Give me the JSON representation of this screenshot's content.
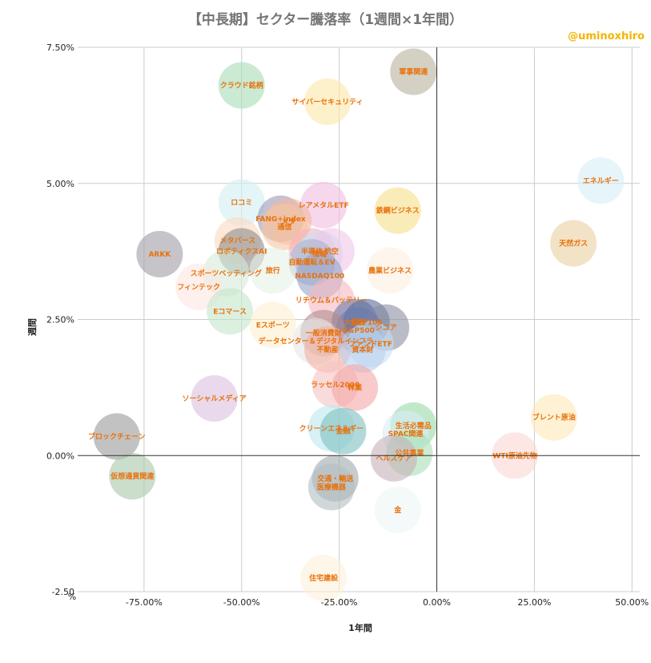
{
  "header": {
    "title": "【中長期】セクター騰落率（1週間×1年間）",
    "credit": "@uminoxhiro"
  },
  "chart_data": {
    "type": "bubble",
    "title": "【中長期】セクター騰落率（1週間×1年間）",
    "xlabel": "1年間",
    "ylabel": "週間",
    "xlim": [
      -92,
      52
    ],
    "ylim": [
      -2.5,
      7.5
    ],
    "x_ticks": [
      "-75.00%",
      "-50.00%",
      "-25.00%",
      "0.00%",
      "25.00%",
      "50.00%"
    ],
    "x_tick_values": [
      -75,
      -50,
      -25,
      0,
      25,
      50
    ],
    "y_ticks": [
      "7.50%",
      "5.00%",
      "2.50%",
      "0.00%",
      "-2.50"
    ],
    "y_tick_values": [
      7.5,
      5,
      2.5,
      0,
      -2.5
    ],
    "y_unit_label": "%",
    "grid": true,
    "points": [
      {
        "label": "軍事関連",
        "x": -6,
        "y": 7.05,
        "color": "#b7b29d"
      },
      {
        "label": "クラウド銘柄",
        "x": -50,
        "y": 6.8,
        "color": "#a8dcb5"
      },
      {
        "label": "サイバーセキュリティ",
        "x": -28,
        "y": 6.5,
        "color": "#fce8a8"
      },
      {
        "label": "エネルギー",
        "x": 42,
        "y": 5.05,
        "color": "#d5eef7"
      },
      {
        "label": "ロコミ",
        "x": -50,
        "y": 4.65,
        "color": "#d2eff2"
      },
      {
        "label": "レアメタルETF",
        "x": -29,
        "y": 4.6,
        "color": "#f1bde0"
      },
      {
        "label": "鉄鋼ビジネス",
        "x": -10,
        "y": 4.5,
        "color": "#f7e08a"
      },
      {
        "label": "FANG+index",
        "x": -40,
        "y": 4.35,
        "color": "#9a9ab5"
      },
      {
        "label": "メタ",
        "x": -38,
        "y": 4.3,
        "color": "#f5b8a0"
      },
      {
        "label": "通信",
        "x": -39,
        "y": 4.2,
        "color": "#f7c7a0"
      },
      {
        "label": "天然ガス",
        "x": 35,
        "y": 3.9,
        "color": "#e9cfa0"
      },
      {
        "label": "メタバース",
        "x": -51,
        "y": 3.95,
        "color": "#fbd9c0"
      },
      {
        "label": "ロボティクスAI",
        "x": -50,
        "y": 3.75,
        "color": "#8c8c8c"
      },
      {
        "label": "ARKK",
        "x": -71,
        "y": 3.7,
        "color": "#a09ca5"
      },
      {
        "label": "半導体",
        "x": -32,
        "y": 3.75,
        "color": "#f7b0c0"
      },
      {
        "label": "情報",
        "x": -30,
        "y": 3.7,
        "color": "#c0e4f0"
      },
      {
        "label": "航空",
        "x": -27,
        "y": 3.75,
        "color": "#f1c6ea"
      },
      {
        "label": "自動運転＆EV",
        "x": -32,
        "y": 3.55,
        "color": "#a6b2d2"
      },
      {
        "label": "旅行",
        "x": -42,
        "y": 3.4,
        "color": "#e6f0e6"
      },
      {
        "label": "農業ビジネス",
        "x": -12,
        "y": 3.4,
        "color": "#fdefe0"
      },
      {
        "label": "NASDAQ100",
        "x": -30,
        "y": 3.3,
        "color": "#9aa5c8"
      },
      {
        "label": "スポーツベッティング",
        "x": -54,
        "y": 3.35,
        "color": "#d6ebd9"
      },
      {
        "label": "フィンテック",
        "x": -61,
        "y": 3.1,
        "color": "#fde6e0"
      },
      {
        "label": "リチウム＆バッテリー",
        "x": -27,
        "y": 2.85,
        "color": "#f5b8c0"
      },
      {
        "label": "Eコマース",
        "x": -53,
        "y": 2.65,
        "color": "#c4e6cc"
      },
      {
        "label": "大型株",
        "x": -21,
        "y": 2.45,
        "color": "#6a7aa5"
      },
      {
        "label": "S&P100",
        "x": -18,
        "y": 2.45,
        "color": "#5a6a98"
      },
      {
        "label": "Eスポーツ",
        "x": -42,
        "y": 2.4,
        "color": "#fdf0d0"
      },
      {
        "label": "シニア",
        "x": -13,
        "y": 2.35,
        "color": "#8a8fa0"
      },
      {
        "label": "S&P500",
        "x": -20,
        "y": 2.3,
        "color": "#6b7ab0"
      },
      {
        "label": "一般消費財",
        "x": -29,
        "y": 2.25,
        "color": "#b08a8a"
      },
      {
        "label": "データセンター＆デジタルインフラ",
        "x": -31,
        "y": 2.1,
        "color": "#e6e6e6"
      },
      {
        "label": "ファンドETF",
        "x": -17,
        "y": 2.05,
        "color": "#c8e0f4"
      },
      {
        "label": "不動産",
        "x": -28,
        "y": 1.95,
        "color": "#f3b0a0"
      },
      {
        "label": "資本財",
        "x": -19,
        "y": 1.95,
        "color": "#b8d0ef"
      },
      {
        "label": "ラッセル2000",
        "x": -26,
        "y": 1.3,
        "color": "#f7c3c3"
      },
      {
        "label": "林業",
        "x": -21,
        "y": 1.25,
        "color": "#f4a6a6"
      },
      {
        "label": "ソーシャルメディア",
        "x": -57,
        "y": 1.05,
        "color": "#dcc0df"
      },
      {
        "label": "ブレント原油",
        "x": 30,
        "y": 0.7,
        "color": "#fde8b8"
      },
      {
        "label": "クリーンエネルギー",
        "x": -27,
        "y": 0.5,
        "color": "#bde8ef"
      },
      {
        "label": "金融",
        "x": -24,
        "y": 0.45,
        "color": "#7fbfbf"
      },
      {
        "label": "生活必需品",
        "x": -6,
        "y": 0.55,
        "color": "#9ad9a6"
      },
      {
        "label": "SPAC関連",
        "x": -8,
        "y": 0.4,
        "color": "#d7ecf7"
      },
      {
        "label": "ブロックチェーン",
        "x": -82,
        "y": 0.35,
        "color": "#9a9a9a"
      },
      {
        "label": "公共事業",
        "x": -7,
        "y": 0.05,
        "color": "#a8e0b5"
      },
      {
        "label": "WTI原油先物",
        "x": 20,
        "y": 0.0,
        "color": "#fbd7d3"
      },
      {
        "label": "ヘルスケア",
        "x": -11,
        "y": -0.05,
        "color": "#c7b0b8"
      },
      {
        "label": "仮想通貨関連",
        "x": -78,
        "y": -0.38,
        "color": "#a9c6a9"
      },
      {
        "label": "交通・輸送",
        "x": -26,
        "y": -0.42,
        "color": "#a0a9ad"
      },
      {
        "label": "医療機器",
        "x": -27,
        "y": -0.58,
        "color": "#b3bec2"
      },
      {
        "label": "金",
        "x": -10,
        "y": -1.0,
        "color": "#edf5f7"
      },
      {
        "label": "住宅建設",
        "x": -29,
        "y": -2.25,
        "color": "#fdf0d8"
      }
    ]
  }
}
